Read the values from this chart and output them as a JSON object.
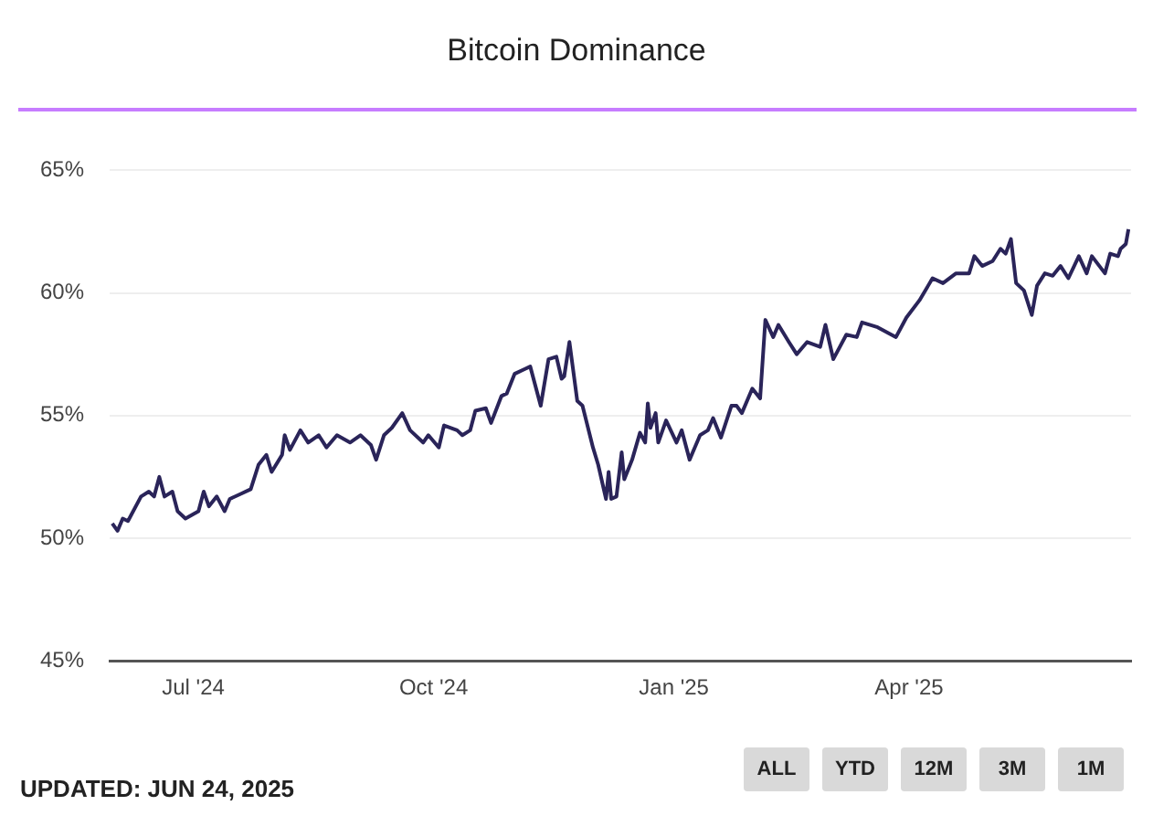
{
  "chart_data": {
    "type": "line",
    "title": "Bitcoin Dominance",
    "annotations": [
      "UPDATED: JUN 24, 2025",
      "ALL",
      "YTD",
      "12M",
      "3M",
      "1M"
    ],
    "x": [
      "2024-05-31",
      "2024-06-02",
      "2024-06-04",
      "2024-06-06",
      "2024-06-11",
      "2024-06-14",
      "2024-06-16",
      "2024-06-18",
      "2024-06-20",
      "2024-06-23",
      "2024-06-25",
      "2024-06-28",
      "2024-07-03",
      "2024-07-05",
      "2024-07-07",
      "2024-07-10",
      "2024-07-13",
      "2024-07-15",
      "2024-07-19",
      "2024-07-23",
      "2024-07-26",
      "2024-07-29",
      "2024-07-31",
      "2024-08-04",
      "2024-08-05",
      "2024-08-07",
      "2024-08-11",
      "2024-08-14",
      "2024-08-18",
      "2024-08-21",
      "2024-08-25",
      "2024-08-30",
      "2024-09-03",
      "2024-09-07",
      "2024-09-09",
      "2024-09-12",
      "2024-09-15",
      "2024-09-19",
      "2024-09-22",
      "2024-09-27",
      "2024-09-29",
      "2024-10-03",
      "2024-10-05",
      "2024-10-10",
      "2024-10-12",
      "2024-10-15",
      "2024-10-17",
      "2024-10-21",
      "2024-10-23",
      "2024-10-27",
      "2024-10-29",
      "2024-11-01",
      "2024-11-05",
      "2024-11-07",
      "2024-11-11",
      "2024-11-14",
      "2024-11-17",
      "2024-11-19",
      "2024-11-20",
      "2024-11-22",
      "2024-11-25",
      "2024-11-27",
      "2024-12-01",
      "2024-12-03",
      "2024-12-06",
      "2024-12-07",
      "2024-12-08",
      "2024-12-10",
      "2024-12-12",
      "2024-12-13",
      "2024-12-16",
      "2024-12-19",
      "2024-12-21",
      "2024-12-22",
      "2024-12-23",
      "2024-12-25",
      "2024-12-26",
      "2024-12-29",
      "2025-01-02",
      "2025-01-04",
      "2025-01-07",
      "2025-01-11",
      "2025-01-14",
      "2025-01-16",
      "2025-01-19",
      "2025-01-23",
      "2025-01-25",
      "2025-01-27",
      "2025-01-31",
      "2025-02-03",
      "2025-02-05",
      "2025-02-08",
      "2025-02-10",
      "2025-02-14",
      "2025-02-17",
      "2025-02-21",
      "2025-02-26",
      "2025-02-28",
      "2025-03-03",
      "2025-03-08",
      "2025-03-12",
      "2025-03-14",
      "2025-03-20",
      "2025-03-27",
      "2025-03-31",
      "2025-04-05",
      "2025-04-10",
      "2025-04-14",
      "2025-04-19",
      "2025-04-24",
      "2025-04-26",
      "2025-04-29",
      "2025-05-03",
      "2025-05-06",
      "2025-05-08",
      "2025-05-10",
      "2025-05-12",
      "2025-05-15",
      "2025-05-18",
      "2025-05-20",
      "2025-05-23",
      "2025-05-26",
      "2025-05-29",
      "2025-06-01",
      "2025-06-05",
      "2025-06-08",
      "2025-06-10",
      "2025-06-15",
      "2025-06-17",
      "2025-06-20",
      "2025-06-21",
      "2025-06-23",
      "2025-06-24"
    ],
    "series": [
      {
        "color": "#2a2459",
        "values": [
          50.6,
          50.3,
          50.8,
          50.7,
          51.7,
          51.9,
          51.7,
          52.5,
          51.7,
          51.9,
          51.1,
          50.8,
          51.1,
          51.9,
          51.3,
          51.7,
          51.1,
          51.6,
          51.8,
          52.0,
          53.0,
          53.4,
          52.7,
          53.4,
          54.2,
          53.6,
          54.4,
          53.9,
          54.2,
          53.7,
          54.2,
          53.9,
          54.2,
          53.8,
          53.2,
          54.2,
          54.5,
          55.1,
          54.4,
          53.9,
          54.2,
          53.7,
          54.6,
          54.4,
          54.2,
          54.4,
          55.2,
          55.3,
          54.7,
          55.8,
          55.9,
          56.7,
          56.9,
          57.0,
          55.4,
          57.3,
          57.4,
          56.5,
          56.6,
          58.0,
          55.6,
          55.4,
          53.7,
          53.0,
          51.6,
          52.7,
          51.6,
          51.7,
          53.5,
          52.4,
          53.2,
          54.3,
          53.9,
          55.5,
          54.5,
          55.1,
          53.9,
          54.8,
          53.9,
          54.4,
          53.2,
          54.2,
          54.4,
          54.9,
          54.1,
          55.4,
          55.4,
          55.1,
          56.1,
          55.7,
          58.9,
          58.2,
          58.7,
          58.0,
          57.5,
          58.0,
          57.8,
          58.7,
          57.3,
          58.3,
          58.2,
          58.8,
          58.6,
          58.2,
          59.0,
          59.7,
          60.6,
          60.4,
          60.8,
          60.8,
          61.5,
          61.1,
          61.3,
          61.8,
          61.6,
          62.2,
          60.4,
          60.1,
          59.1,
          60.3,
          60.8,
          60.7,
          61.1,
          60.6,
          61.5,
          60.8,
          61.5,
          60.8,
          61.6,
          61.5,
          61.8,
          62.0,
          62.6
        ]
      }
    ],
    "xlim": [
      "2024-05-30",
      "2025-06-25"
    ],
    "xticks": [
      {
        "value": "2024-07-01",
        "label": "Jul '24"
      },
      {
        "value": "2024-10-01",
        "label": "Oct '24"
      },
      {
        "value": "2025-01-01",
        "label": "Jan '25"
      },
      {
        "value": "2025-04-01",
        "label": "Apr '25"
      }
    ],
    "ylim": [
      45,
      65
    ],
    "yticks": [
      {
        "value": 45,
        "label": "45%"
      },
      {
        "value": 50,
        "label": "50%"
      },
      {
        "value": 55,
        "label": "55%"
      },
      {
        "value": 60,
        "label": "60%"
      },
      {
        "value": 65,
        "label": "65%"
      }
    ],
    "grid": "y",
    "legend": false,
    "marker": "none",
    "line_style": "solid"
  }
}
